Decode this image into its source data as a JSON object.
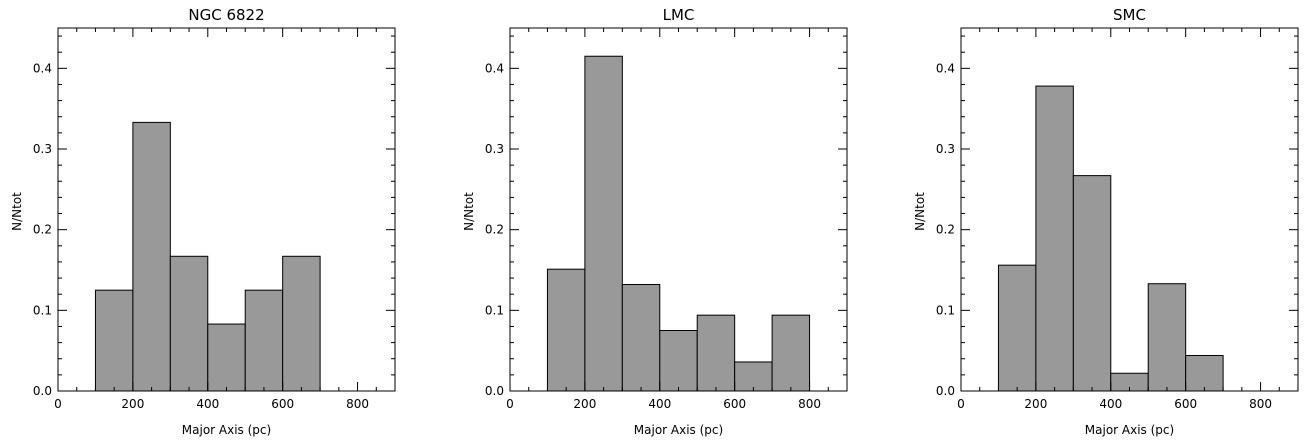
{
  "chart_data": [
    {
      "type": "bar",
      "title": "NGC 6822",
      "xlabel": "Major Axis (pc)",
      "ylabel": "N/Ntot",
      "xlim": [
        0,
        900
      ],
      "ylim": [
        0,
        0.45
      ],
      "xticks": [
        "0",
        "200",
        "400",
        "600",
        "800"
      ],
      "yticks": [
        "0.0",
        "0.1",
        "0.2",
        "0.3",
        "0.4"
      ],
      "bin_edges": [
        100,
        200,
        300,
        400,
        500,
        600,
        700
      ],
      "values": [
        0.125,
        0.333,
        0.167,
        0.083,
        0.125,
        0.167
      ],
      "bar_color": "#999999",
      "grid": false
    },
    {
      "type": "bar",
      "title": "LMC",
      "xlabel": "Major Axis (pc)",
      "ylabel": "N/Ntot",
      "xlim": [
        0,
        900
      ],
      "ylim": [
        0,
        0.45
      ],
      "xticks": [
        "0",
        "200",
        "400",
        "600",
        "800"
      ],
      "yticks": [
        "0.0",
        "0.1",
        "0.2",
        "0.3",
        "0.4"
      ],
      "bin_edges": [
        100,
        200,
        300,
        400,
        500,
        600,
        700,
        800
      ],
      "values": [
        0.151,
        0.415,
        0.132,
        0.075,
        0.094,
        0.036,
        0.094
      ],
      "bar_color": "#999999",
      "grid": false
    },
    {
      "type": "bar",
      "title": "SMC",
      "xlabel": "Major Axis (pc)",
      "ylabel": "N/Ntot",
      "xlim": [
        0,
        900
      ],
      "ylim": [
        0,
        0.45
      ],
      "xticks": [
        "0",
        "200",
        "400",
        "600",
        "800"
      ],
      "yticks": [
        "0.0",
        "0.1",
        "0.2",
        "0.3",
        "0.4"
      ],
      "bin_edges": [
        100,
        200,
        300,
        400,
        500,
        600,
        700
      ],
      "values": [
        0.156,
        0.378,
        0.267,
        0.022,
        0.133,
        0.044
      ],
      "bar_color": "#999999",
      "grid": false
    }
  ]
}
